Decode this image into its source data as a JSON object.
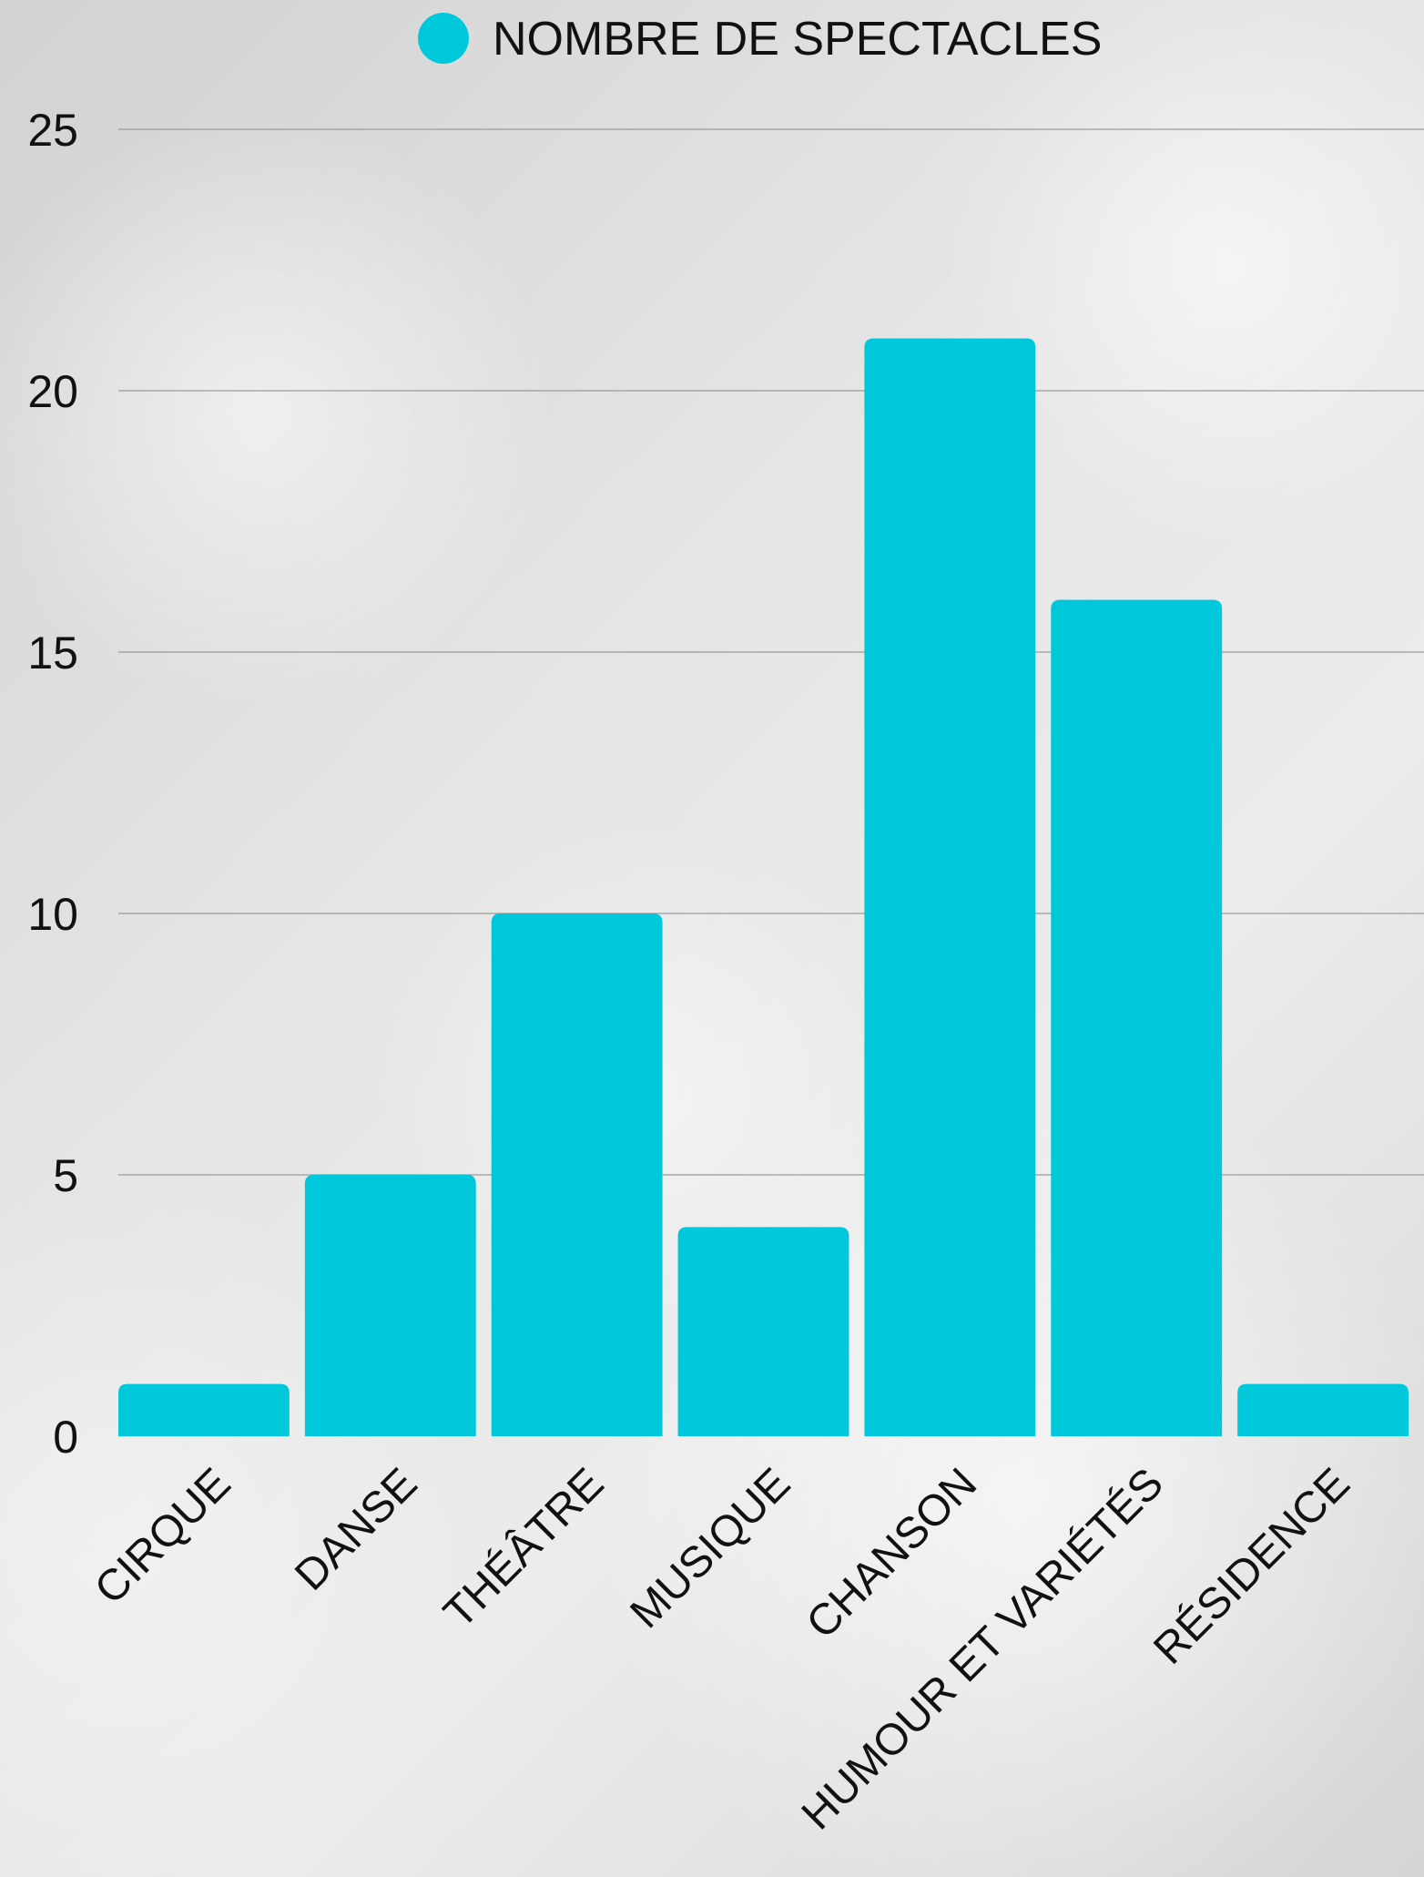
{
  "chart_data": {
    "type": "bar",
    "title": "",
    "xlabel": "",
    "ylabel": "",
    "categories": [
      "CIRQUE",
      "DANSE",
      "THÉÂTRE",
      "MUSIQUE",
      "CHANSON",
      "HUMOUR ET VARIÉTÉS",
      "RÉSIDENCE"
    ],
    "series": [
      {
        "name": "NOMBRE DE SPECTACLES",
        "color": "#00C8DB",
        "values": [
          1,
          5,
          10,
          4,
          21,
          16,
          1
        ]
      }
    ],
    "ylim": [
      0,
      25
    ],
    "yticks": [
      0,
      5,
      10,
      15,
      20,
      25
    ],
    "grid": true,
    "legend": "top-center"
  }
}
